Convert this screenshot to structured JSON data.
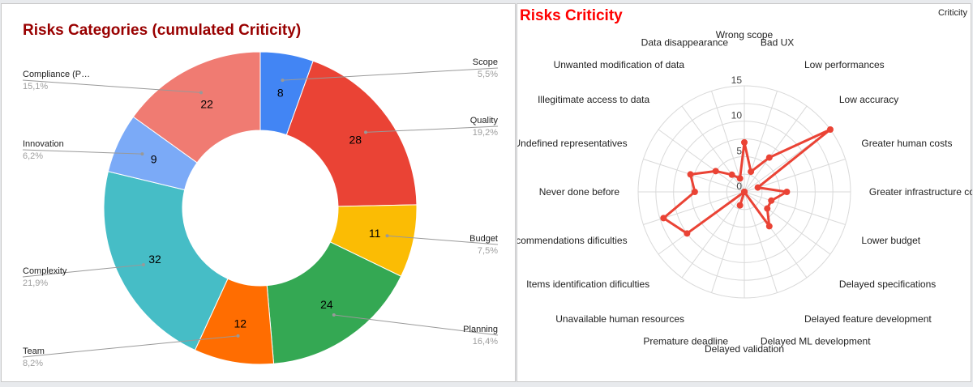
{
  "chart_data": [
    {
      "type": "pie",
      "subtype": "donut",
      "title": "Risks Categories (cumulated Criticity)",
      "slices": [
        {
          "label": "Scope",
          "value": 8,
          "percent": "5,5%",
          "color": "#4285f4"
        },
        {
          "label": "Quality",
          "value": 28,
          "percent": "19,2%",
          "color": "#ea4335"
        },
        {
          "label": "Budget",
          "value": 11,
          "percent": "7,5%",
          "color": "#fbbc04"
        },
        {
          "label": "Planning",
          "value": 24,
          "percent": "16,4%",
          "color": "#34a853"
        },
        {
          "label": "Team",
          "value": 12,
          "percent": "8,2%",
          "color": "#ff6d01"
        },
        {
          "label": "Complexity",
          "value": 32,
          "percent": "21,9%",
          "color": "#46bdc6"
        },
        {
          "label": "Innovation",
          "value": 9,
          "percent": "6,2%",
          "color": "#7baaf7"
        },
        {
          "label": "Compliance (P…",
          "value": 22,
          "percent": "15,1%",
          "color": "#f07b72"
        }
      ]
    },
    {
      "type": "radar",
      "title": "Risks Criticity",
      "legend": "Criticity",
      "legend_position": "top-right",
      "rlim": [
        0,
        15
      ],
      "ticks": [
        0,
        5,
        10,
        15
      ],
      "series_color": "#ea4335",
      "axes": [
        "Wrong scope",
        "Bad UX",
        "Low performances",
        "Low accuracy",
        "Greater human costs",
        "Greater infrastructure costs",
        "Lower budget",
        "Delayed specifications",
        "Delayed feature development",
        "Delayed ML development",
        "Delayed validation",
        "Premature deadline",
        "Unavailable human resources",
        "Items identification dificulties",
        "Recommendations dificulties",
        "Never done before",
        "Undefined representatives",
        "Illegitimate access to data",
        "Unwanted modification of data",
        "Data disappearance"
      ],
      "values": [
        7,
        3,
        6,
        15,
        2,
        6,
        4,
        4,
        6,
        0,
        0,
        2,
        0,
        10,
        12,
        7,
        8,
        5,
        3,
        2
      ]
    }
  ]
}
